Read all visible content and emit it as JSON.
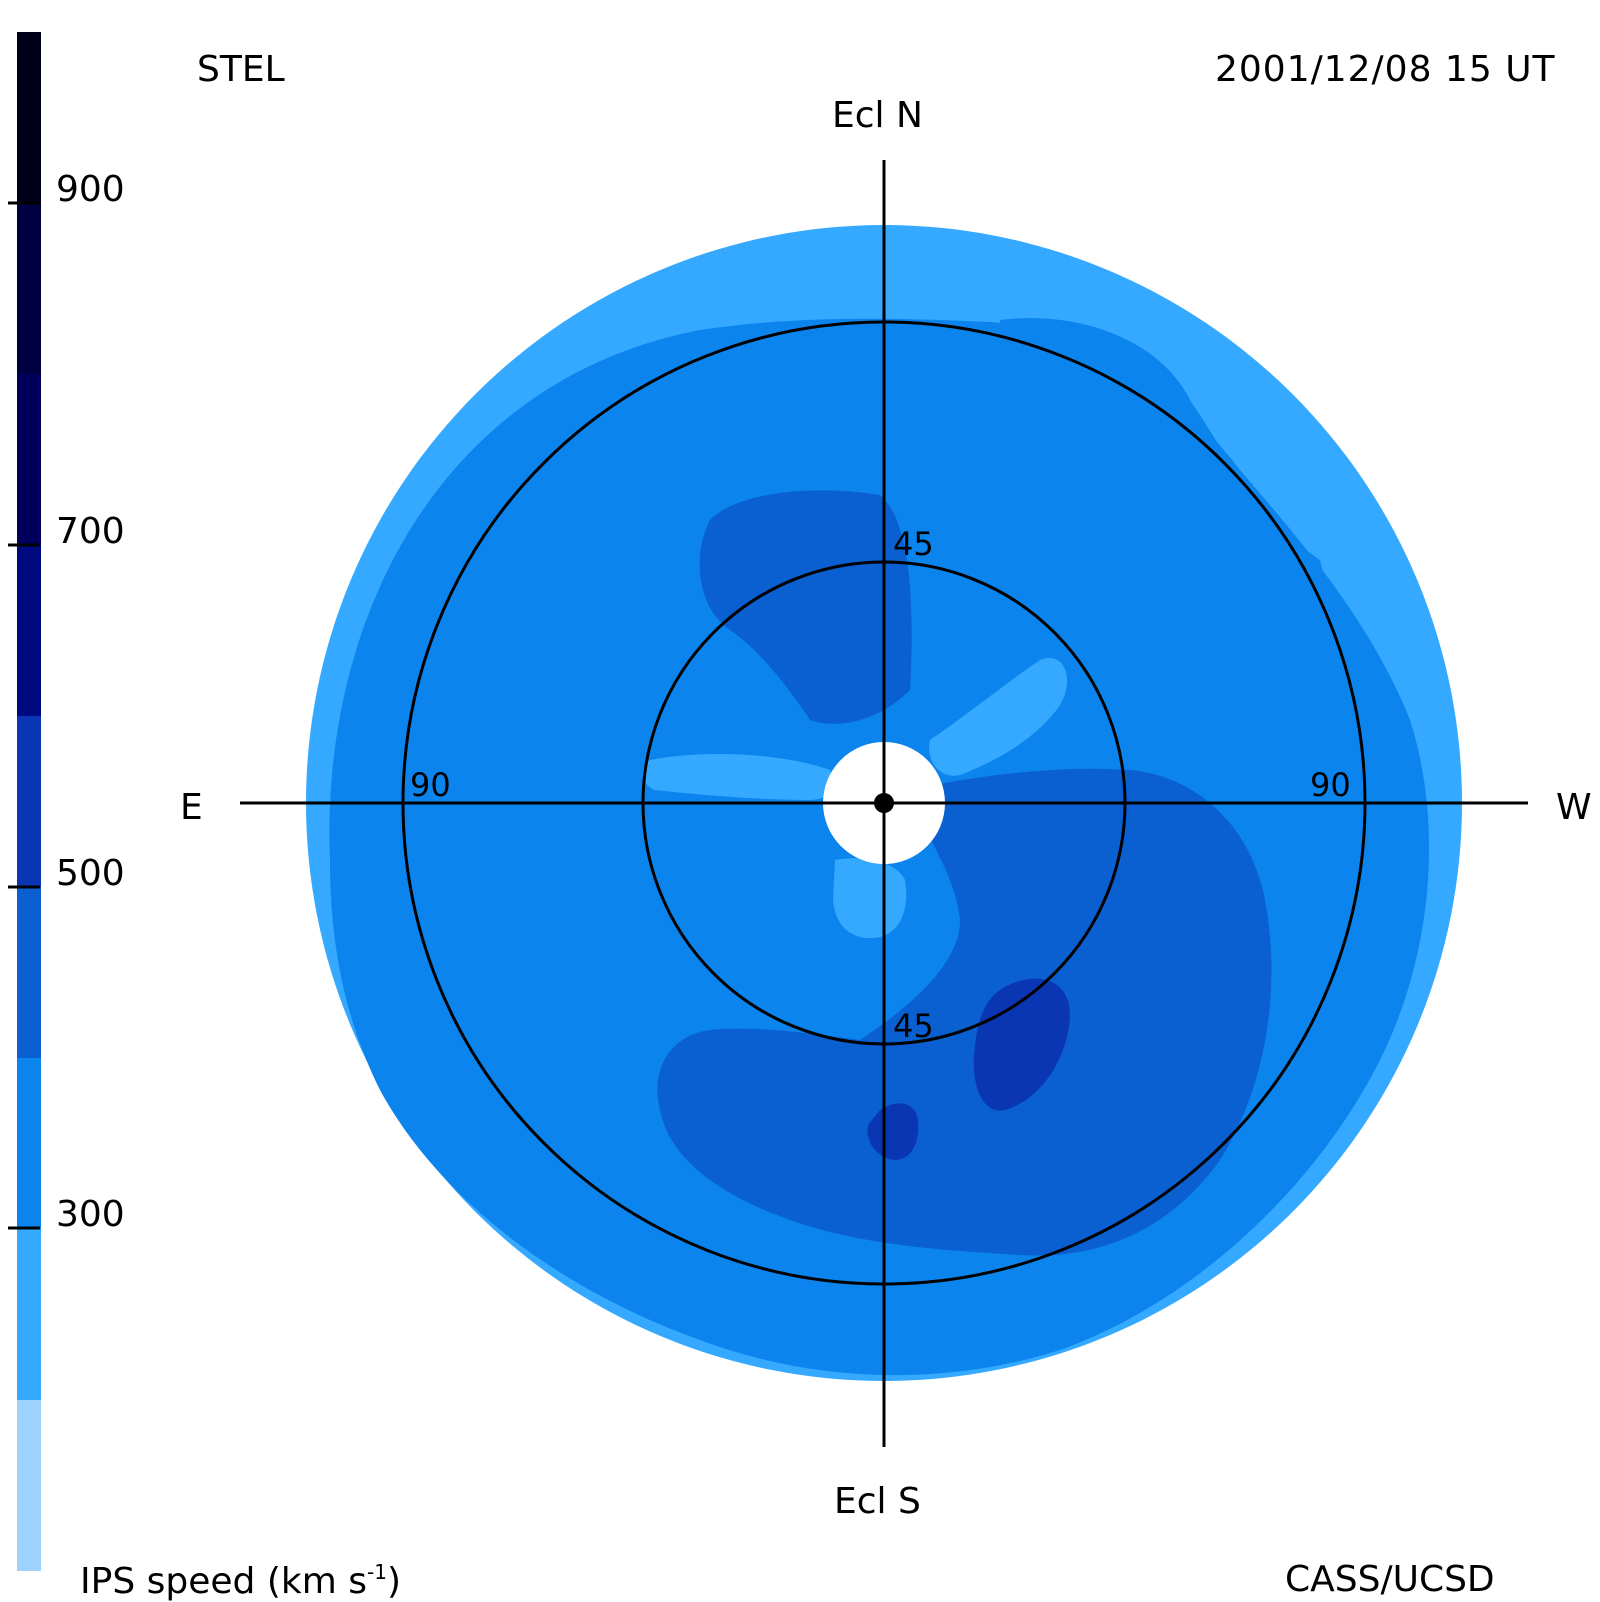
{
  "observatory": "STEL",
  "timestamp": "2001/12/08  15 UT",
  "credit": "CASS/UCSD",
  "legend": {
    "title_main": "IPS speed (km s",
    "title_sup": "-1",
    "title_tail": ")",
    "ticks": [
      "900",
      "700",
      "500",
      "300"
    ],
    "levels": [
      {
        "max": 1000,
        "color": "#00001a"
      },
      {
        "max": 900,
        "color": "#000040"
      },
      {
        "max": 800,
        "color": "#00005c"
      },
      {
        "max": 700,
        "color": "#000a80"
      },
      {
        "max": 600,
        "color": "#0a36b3"
      },
      {
        "max": 500,
        "color": "#0a5fd1"
      },
      {
        "max": 400,
        "color": "#0b84ee"
      },
      {
        "max": 300,
        "color": "#35a9ff"
      },
      {
        "max": 200,
        "color": "#9ed3ff"
      }
    ]
  },
  "directions": {
    "north": "Ecl N",
    "south": "Ecl S",
    "east": "E",
    "west": "W"
  },
  "ring_labels": {
    "inner_top": "45",
    "inner_bottom": "45",
    "outer_left": "90",
    "outer_right": "90"
  },
  "colors": {
    "speed_300_400": "#35a9ff",
    "speed_400_500": "#0b84ee",
    "speed_500_600": "#0a5fd1",
    "speed_600_700": "#0a36b3"
  }
}
